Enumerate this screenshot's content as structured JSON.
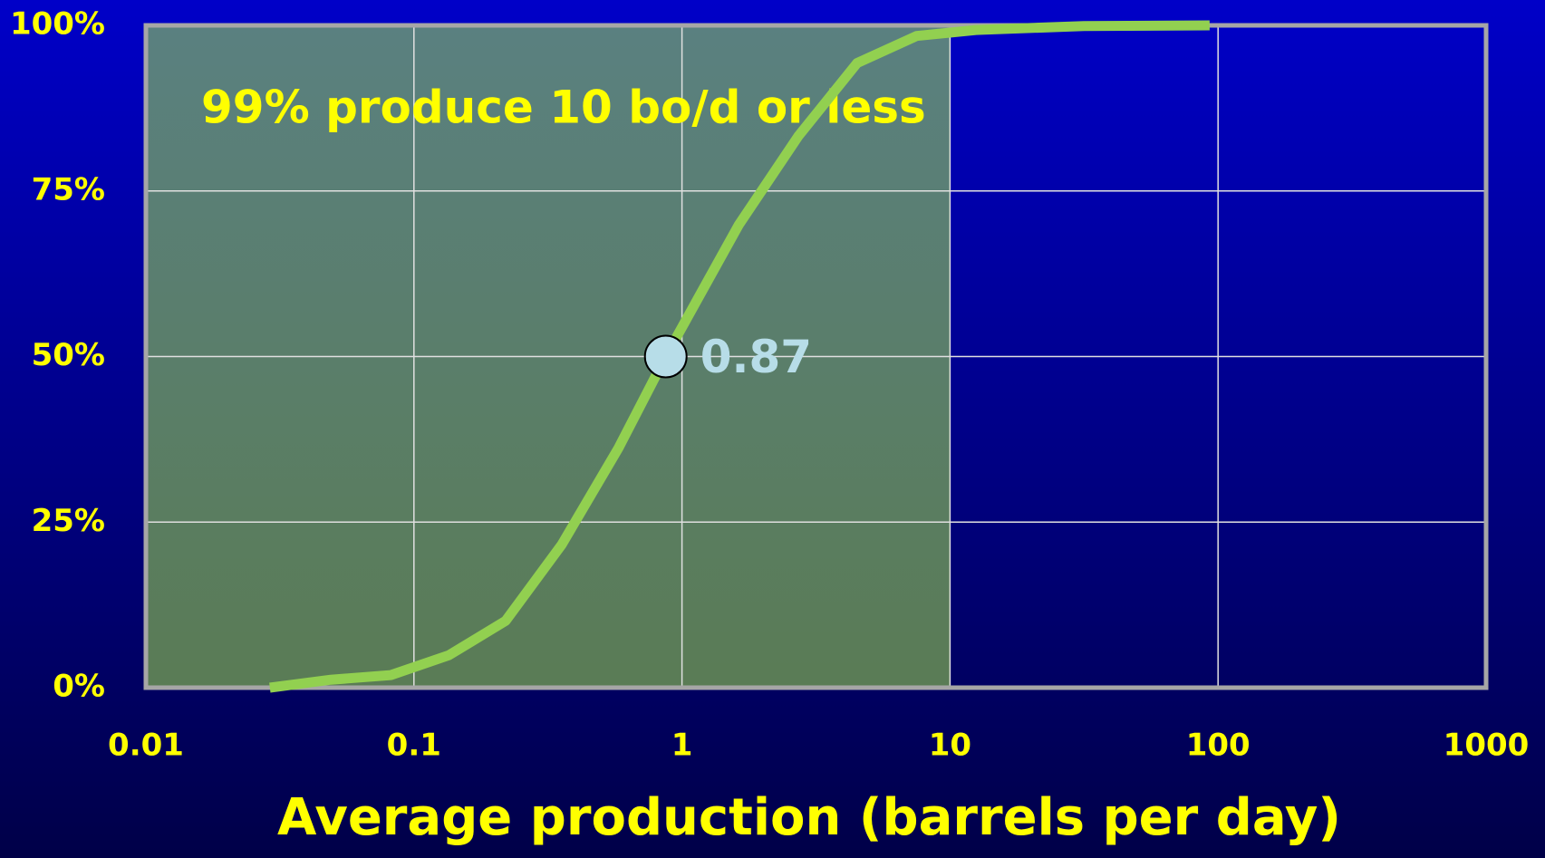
{
  "chart_data": {
    "type": "line",
    "xlabel": "Average production (barrels per day)",
    "annotation": "99% produce 10 bo/d or less",
    "x": [
      0.029,
      0.049,
      0.082,
      0.135,
      0.22,
      0.356,
      0.58,
      0.87,
      1.63,
      2.72,
      4.5,
      7.5,
      12.5,
      31.6,
      93
    ],
    "series": [
      {
        "color": "#92d050",
        "values": [
          0,
          1.2,
          1.9,
          4.9,
          10.1,
          21.6,
          36.2,
          50,
          69.9,
          83.3,
          94.3,
          98.4,
          99.3,
          99.9,
          100
        ]
      }
    ],
    "marker": {
      "x": 0.87,
      "y": 50,
      "label": "0.87",
      "color": "#b7dde8"
    },
    "highlight": {
      "xlim": [
        0.01,
        10
      ]
    },
    "xscale": "log",
    "xlim": [
      0.01,
      1000
    ],
    "xticks": [
      0.01,
      0.1,
      1,
      10,
      100,
      1000
    ],
    "ylim": [
      0,
      100
    ],
    "yticks": [
      {
        "value": 0,
        "label": "0%"
      },
      {
        "value": 25,
        "label": "25%"
      },
      {
        "value": 50,
        "label": "50%"
      },
      {
        "value": 75,
        "label": "75%"
      },
      {
        "value": 100,
        "label": "100%"
      }
    ],
    "grid": true
  }
}
